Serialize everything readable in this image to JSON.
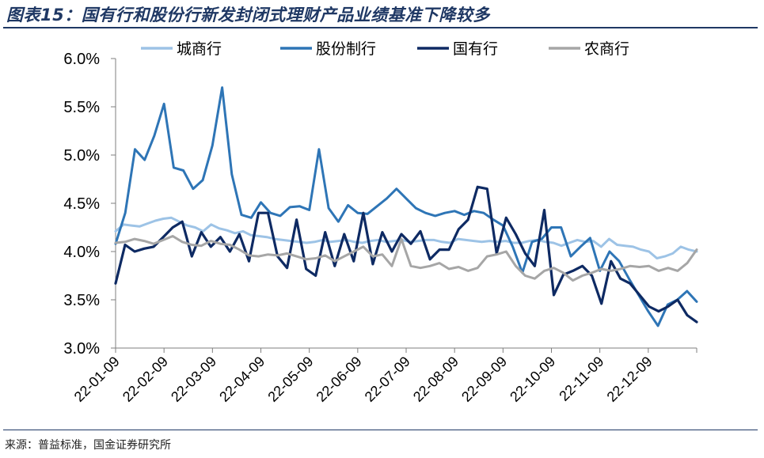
{
  "title": "图表15：国有行和股份行新发封闭式理财产品业绩基准下降较多",
  "source": "来源：普益标准，国金证券研究所",
  "chart_data": {
    "type": "line",
    "title": "图表15：国有行和股份行新发封闭式理财产品业绩基准下降较多",
    "xlabel": "",
    "ylabel": "",
    "ylim": [
      3.0,
      6.0
    ],
    "yticks": [
      3.0,
      3.5,
      4.0,
      4.5,
      5.0,
      5.5,
      6.0
    ],
    "ytick_labels": [
      "3.0%",
      "3.5%",
      "4.0%",
      "4.5%",
      "5.0%",
      "5.5%",
      "6.0%"
    ],
    "x_tick_labels": [
      "22-01-09",
      "22-02-09",
      "22-03-09",
      "22-04-09",
      "22-05-09",
      "22-06-09",
      "22-07-09",
      "22-08-09",
      "22-09-09",
      "22-10-09",
      "22-11-09",
      "22-12-09"
    ],
    "grid": false,
    "legend_position": "top",
    "series": [
      {
        "name": "城商行",
        "color": "#9dc3e6",
        "values": [
          4.21,
          4.28,
          4.27,
          4.26,
          4.29,
          4.32,
          4.34,
          4.35,
          4.31,
          4.27,
          4.25,
          4.21,
          4.28,
          4.24,
          4.22,
          4.19,
          4.21,
          4.17,
          4.16,
          4.15,
          4.13,
          4.12,
          4.11,
          4.1,
          4.09,
          4.1,
          4.12,
          4.1,
          4.11,
          4.12,
          4.1,
          4.09,
          4.11,
          4.12,
          4.1,
          4.11,
          4.12,
          4.1,
          4.11,
          4.12,
          4.12,
          4.1,
          4.09,
          4.13,
          4.12,
          4.11,
          4.1,
          4.11,
          4.1,
          4.11,
          4.09,
          4.09,
          4.11,
          4.12,
          4.1,
          4.09,
          4.06,
          4.09,
          4.12,
          4.1,
          4.11,
          4.05,
          4.13,
          4.07,
          4.06,
          4.05,
          4.02,
          4.0,
          3.93,
          3.95,
          3.98,
          4.05,
          4.02,
          4.0
        ]
      },
      {
        "name": "股份制行",
        "color": "#2e75b6",
        "values": [
          4.08,
          4.4,
          5.06,
          4.95,
          5.2,
          5.53,
          4.87,
          4.84,
          4.65,
          4.74,
          5.1,
          5.7,
          4.8,
          4.38,
          4.35,
          4.51,
          4.4,
          4.37,
          4.46,
          4.47,
          4.43,
          5.06,
          4.45,
          4.31,
          4.48,
          4.4,
          4.39,
          4.47,
          4.55,
          4.65,
          4.55,
          4.45,
          4.4,
          4.37,
          4.4,
          4.42,
          4.38,
          4.42,
          4.4,
          4.33,
          4.27,
          4.05,
          3.78,
          4.1,
          4.13,
          4.25,
          4.25,
          3.95,
          4.05,
          4.14,
          3.8,
          4.0,
          3.9,
          3.72,
          3.55,
          3.38,
          3.23,
          3.45,
          3.5,
          3.59,
          3.48
        ]
      },
      {
        "name": "国有行",
        "color": "#0e2a63",
        "values": [
          3.67,
          4.07,
          4.0,
          4.03,
          4.05,
          4.15,
          4.25,
          4.31,
          3.95,
          4.2,
          4.05,
          4.15,
          4.0,
          4.18,
          3.9,
          4.4,
          4.4,
          3.95,
          3.83,
          4.33,
          3.82,
          3.75,
          4.2,
          3.85,
          4.18,
          3.9,
          4.4,
          3.87,
          4.2,
          4.0,
          4.18,
          4.08,
          4.21,
          3.92,
          4.02,
          4.02,
          4.23,
          4.33,
          4.67,
          4.65,
          3.98,
          4.35,
          4.18,
          3.98,
          3.85,
          4.43,
          3.55,
          3.76,
          3.8,
          3.85,
          3.75,
          3.46,
          3.9,
          3.72,
          3.67,
          3.55,
          3.43,
          3.38,
          3.43,
          3.5,
          3.34,
          3.27
        ]
      },
      {
        "name": "农商行",
        "color": "#a6a6a6",
        "values": [
          4.09,
          4.1,
          4.13,
          4.11,
          4.08,
          4.12,
          4.16,
          4.1,
          4.07,
          4.06,
          4.11,
          4.08,
          4.07,
          4.02,
          3.96,
          3.95,
          3.97,
          3.96,
          3.98,
          3.95,
          3.92,
          3.93,
          3.96,
          3.9,
          3.95,
          4.0,
          4.05,
          3.95,
          3.97,
          3.85,
          4.13,
          3.85,
          3.83,
          3.85,
          3.88,
          3.82,
          3.84,
          3.8,
          3.83,
          3.95,
          3.97,
          4.0,
          3.85,
          3.75,
          3.72,
          3.8,
          3.83,
          3.78,
          3.7,
          3.75,
          3.78,
          3.82,
          3.8,
          3.82,
          3.85,
          3.84,
          3.85,
          3.8,
          3.83,
          3.8,
          3.88,
          4.02
        ]
      }
    ]
  }
}
